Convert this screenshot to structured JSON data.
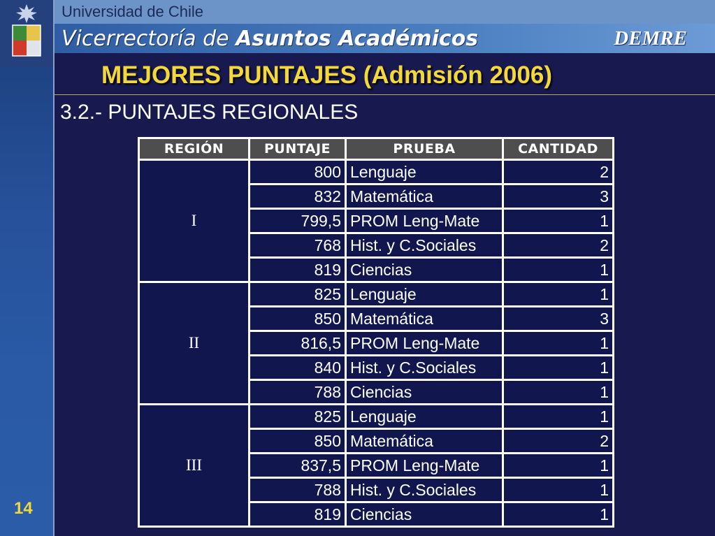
{
  "header": {
    "university": "Universidad de Chile",
    "department_prefix": "Vicerrectoría de",
    "department_main": "Asuntos Académicos",
    "brand": "DEMRE"
  },
  "title": "MEJORES PUNTAJES (Admisión 2006)",
  "subtitle": "3.2.- PUNTAJES REGIONALES",
  "slide_number": "14",
  "table": {
    "headers": [
      "REGIÓN",
      "PUNTAJE",
      "PRUEBA",
      "CANTIDAD"
    ],
    "groups": [
      {
        "region": "I",
        "rows": [
          {
            "puntaje": "800",
            "prueba": "Lenguaje",
            "cantidad": "2"
          },
          {
            "puntaje": "832",
            "prueba": "Matemática",
            "cantidad": "3"
          },
          {
            "puntaje": "799,5",
            "prueba": "PROM Leng-Mate",
            "cantidad": "1"
          },
          {
            "puntaje": "768",
            "prueba": "Hist. y C.Sociales",
            "cantidad": "2"
          },
          {
            "puntaje": "819",
            "prueba": "Ciencias",
            "cantidad": "1"
          }
        ]
      },
      {
        "region": "II",
        "rows": [
          {
            "puntaje": "825",
            "prueba": "Lenguaje",
            "cantidad": "1"
          },
          {
            "puntaje": "850",
            "prueba": "Matemática",
            "cantidad": "3"
          },
          {
            "puntaje": "816,5",
            "prueba": "PROM Leng-Mate",
            "cantidad": "1"
          },
          {
            "puntaje": "840",
            "prueba": "Hist. y C.Sociales",
            "cantidad": "1"
          },
          {
            "puntaje": "788",
            "prueba": "Ciencias",
            "cantidad": "1"
          }
        ]
      },
      {
        "region": "III",
        "rows": [
          {
            "puntaje": "825",
            "prueba": "Lenguaje",
            "cantidad": "1"
          },
          {
            "puntaje": "850",
            "prueba": "Matemática",
            "cantidad": "2"
          },
          {
            "puntaje": "837,5",
            "prueba": "PROM Leng-Mate",
            "cantidad": "1"
          },
          {
            "puntaje": "788",
            "prueba": "Hist. y C.Sociales",
            "cantidad": "1"
          },
          {
            "puntaje": "819",
            "prueba": "Ciencias",
            "cantidad": "1"
          }
        ]
      }
    ]
  },
  "colors": {
    "title": "#f4d83a",
    "background": "#17194f",
    "cell": "#11174e",
    "header_cell": "#4e4e4e"
  },
  "icons": [
    "university-crest-icon"
  ]
}
